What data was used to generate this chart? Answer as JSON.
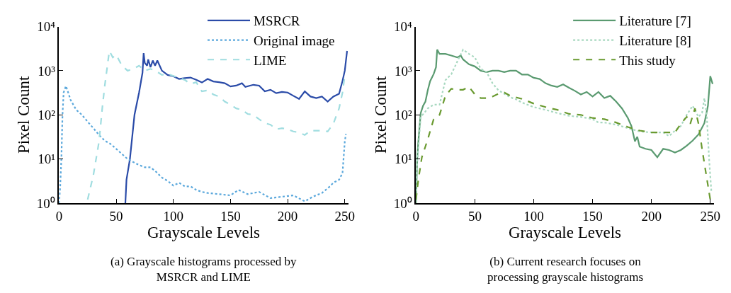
{
  "chart_data": [
    {
      "type": "line",
      "title": "(a) Grayscale histograms processed by\nMSRCR and LIME",
      "xlabel": "Grayscale Levels",
      "ylabel": "Pixel Count",
      "log": "y",
      "legend": "top right",
      "xlim": [
        0,
        253
      ],
      "xticks": [
        0,
        50,
        100,
        150,
        200,
        250
      ],
      "ylim": [
        1,
        10000
      ],
      "yticks": [
        {
          "value": 1,
          "label": "10⁰"
        },
        {
          "value": 10,
          "label": "10¹"
        },
        {
          "value": 100,
          "label": "10²"
        },
        {
          "value": 1000,
          "label": "10³"
        },
        {
          "value": 10000,
          "label": "10⁴"
        }
      ],
      "series": [
        {
          "name": "MSRCR",
          "color": "#2a4ba8",
          "line_style": "solid",
          "x": [
            58,
            59,
            62,
            66,
            70,
            73,
            74,
            75,
            77,
            78,
            80,
            82,
            84,
            86,
            88,
            90,
            95,
            100,
            105,
            110,
            115,
            120,
            125,
            130,
            135,
            140,
            145,
            150,
            155,
            160,
            163,
            170,
            175,
            180,
            185,
            190,
            195,
            200,
            205,
            210,
            215,
            220,
            225,
            230,
            235,
            240,
            245,
            248,
            250,
            252
          ],
          "values": [
            1,
            3.4,
            10,
            100,
            320,
            900,
            2500,
            1500,
            1300,
            1800,
            1200,
            1700,
            1300,
            1700,
            1300,
            1000,
            800,
            750,
            650,
            680,
            700,
            620,
            540,
            650,
            570,
            550,
            520,
            440,
            460,
            520,
            430,
            480,
            460,
            340,
            370,
            310,
            330,
            320,
            270,
            230,
            340,
            260,
            240,
            260,
            200,
            260,
            300,
            590,
            1000,
            2800
          ]
        },
        {
          "name": "Original image",
          "color": "#5ba8dc",
          "line_style": "dotted",
          "x": [
            0,
            1,
            2,
            3,
            4,
            6,
            8,
            10,
            15,
            20,
            25,
            30,
            35,
            40,
            45,
            50,
            55,
            60,
            65,
            70,
            75,
            80,
            85,
            90,
            95,
            100,
            105,
            110,
            115,
            120,
            125,
            130,
            140,
            150,
            157,
            165,
            175,
            185,
            195,
            205,
            215,
            222,
            230,
            237,
            240,
            245,
            248,
            250,
            251
          ],
          "values": [
            1,
            2.4,
            10,
            100,
            320,
            450,
            320,
            220,
            130,
            100,
            70,
            50,
            35,
            26,
            22,
            17,
            13,
            10,
            8.5,
            7.3,
            6.5,
            6.5,
            5.1,
            3.8,
            3.2,
            2.5,
            2.9,
            2.4,
            2.4,
            2,
            1.8,
            1.7,
            1.6,
            1.5,
            2,
            1.6,
            1.8,
            1.3,
            1.4,
            1.5,
            1.1,
            1.4,
            1.7,
            2.4,
            2.9,
            3.4,
            4.8,
            25,
            37
          ]
        },
        {
          "name": "LIME",
          "color": "#a0dde0",
          "line_style": "dashed",
          "x": [
            25,
            30,
            35,
            38,
            40,
            44,
            47,
            50,
            55,
            60,
            65,
            70,
            75,
            80,
            85,
            90,
            95,
            100,
            110,
            115,
            120,
            125,
            130,
            135,
            140,
            145,
            150,
            155,
            160,
            165,
            170,
            175,
            180,
            185,
            190,
            195,
            200,
            205,
            210,
            215,
            220,
            230,
            235,
            240,
            245,
            248,
            250
          ],
          "values": [
            1.2,
            4.3,
            25,
            160,
            460,
            2800,
            2000,
            2300,
            1300,
            1000,
            1100,
            1300,
            1000,
            1100,
            980,
            800,
            850,
            760,
            620,
            500,
            550,
            340,
            360,
            290,
            260,
            200,
            170,
            140,
            130,
            105,
            100,
            80,
            65,
            60,
            47,
            50,
            47,
            42,
            40,
            35,
            44,
            44,
            42,
            63,
            140,
            320,
            780
          ]
        }
      ]
    },
    {
      "type": "line",
      "title": "(b) Current research focuses on\nprocessing grayscale histograms",
      "xlabel": "Grayscale Levels",
      "ylabel": "Pixel Count",
      "log": "y",
      "legend": "top right",
      "xlim": [
        0,
        253
      ],
      "xticks": [
        0,
        50,
        100,
        150,
        200,
        250
      ],
      "ylim": [
        1,
        10000
      ],
      "yticks": [
        {
          "value": 1,
          "label": "10⁰"
        },
        {
          "value": 10,
          "label": "10¹"
        },
        {
          "value": 100,
          "label": "10²"
        },
        {
          "value": 1000,
          "label": "10³"
        },
        {
          "value": 10000,
          "label": "10⁴"
        }
      ],
      "series": [
        {
          "name": "Literature [7]",
          "color": "#5a9a70",
          "line_style": "solid",
          "x": [
            0,
            1,
            2,
            4,
            6,
            8,
            10,
            12,
            15,
            17,
            18,
            20,
            25,
            30,
            35,
            38,
            40,
            45,
            50,
            55,
            60,
            65,
            70,
            75,
            80,
            85,
            90,
            95,
            100,
            105,
            110,
            115,
            120,
            125,
            130,
            135,
            140,
            145,
            150,
            155,
            160,
            165,
            170,
            175,
            180,
            183,
            186,
            188,
            190,
            195,
            200,
            205,
            210,
            215,
            220,
            225,
            230,
            235,
            240,
            245,
            248,
            250,
            252
          ],
          "values": [
            1,
            10,
            25,
            110,
            160,
            200,
            360,
            580,
            840,
            1200,
            3000,
            2400,
            2400,
            2200,
            2000,
            2200,
            1800,
            1400,
            1250,
            1000,
            930,
            1000,
            1000,
            930,
            1000,
            1000,
            820,
            820,
            690,
            650,
            520,
            460,
            430,
            490,
            410,
            350,
            290,
            330,
            260,
            330,
            240,
            270,
            200,
            140,
            85,
            56,
            25,
            32,
            19,
            17,
            16,
            11,
            17,
            16,
            14,
            16,
            20,
            26,
            36,
            65,
            160,
            750,
            500
          ]
        },
        {
          "name": "Literature [8]",
          "color": "#a8d8c0",
          "line_style": "dotted",
          "x": [
            0,
            1,
            3,
            4,
            7,
            10,
            15,
            20,
            25,
            30,
            35,
            40,
            45,
            50,
            55,
            60,
            65,
            70,
            75,
            80,
            85,
            90,
            100,
            110,
            120,
            130,
            140,
            150,
            155,
            160,
            170,
            180,
            190,
            200,
            210,
            215,
            220,
            225,
            230,
            235,
            240,
            243,
            245,
            247,
            249,
            251
          ],
          "values": [
            1.2,
            8,
            40,
            90,
            110,
            140,
            170,
            170,
            610,
            830,
            1600,
            3000,
            2400,
            2000,
            1100,
            930,
            520,
            360,
            300,
            250,
            225,
            190,
            150,
            130,
            110,
            95,
            90,
            80,
            67,
            67,
            60,
            50,
            42,
            40,
            40,
            33,
            44,
            56,
            100,
            160,
            90,
            110,
            240,
            100,
            10,
            1.7
          ]
        },
        {
          "name": "This study",
          "color": "#6a9a30",
          "line_style": "dashed",
          "x": [
            0,
            2,
            5,
            10,
            15,
            20,
            25,
            30,
            35,
            40,
            45,
            50,
            55,
            60,
            65,
            70,
            75,
            80,
            90,
            100,
            110,
            120,
            130,
            140,
            150,
            160,
            170,
            180,
            190,
            200,
            210,
            220,
            225,
            230,
            233,
            237,
            240,
            243,
            246,
            250
          ],
          "values": [
            1.2,
            3.4,
            11,
            28,
            80,
            100,
            270,
            390,
            370,
            370,
            430,
            290,
            240,
            240,
            260,
            300,
            320,
            270,
            230,
            180,
            150,
            130,
            105,
            100,
            85,
            80,
            67,
            53,
            44,
            40,
            40,
            40,
            63,
            90,
            63,
            140,
            63,
            17,
            5.4,
            1.2
          ]
        }
      ]
    }
  ]
}
